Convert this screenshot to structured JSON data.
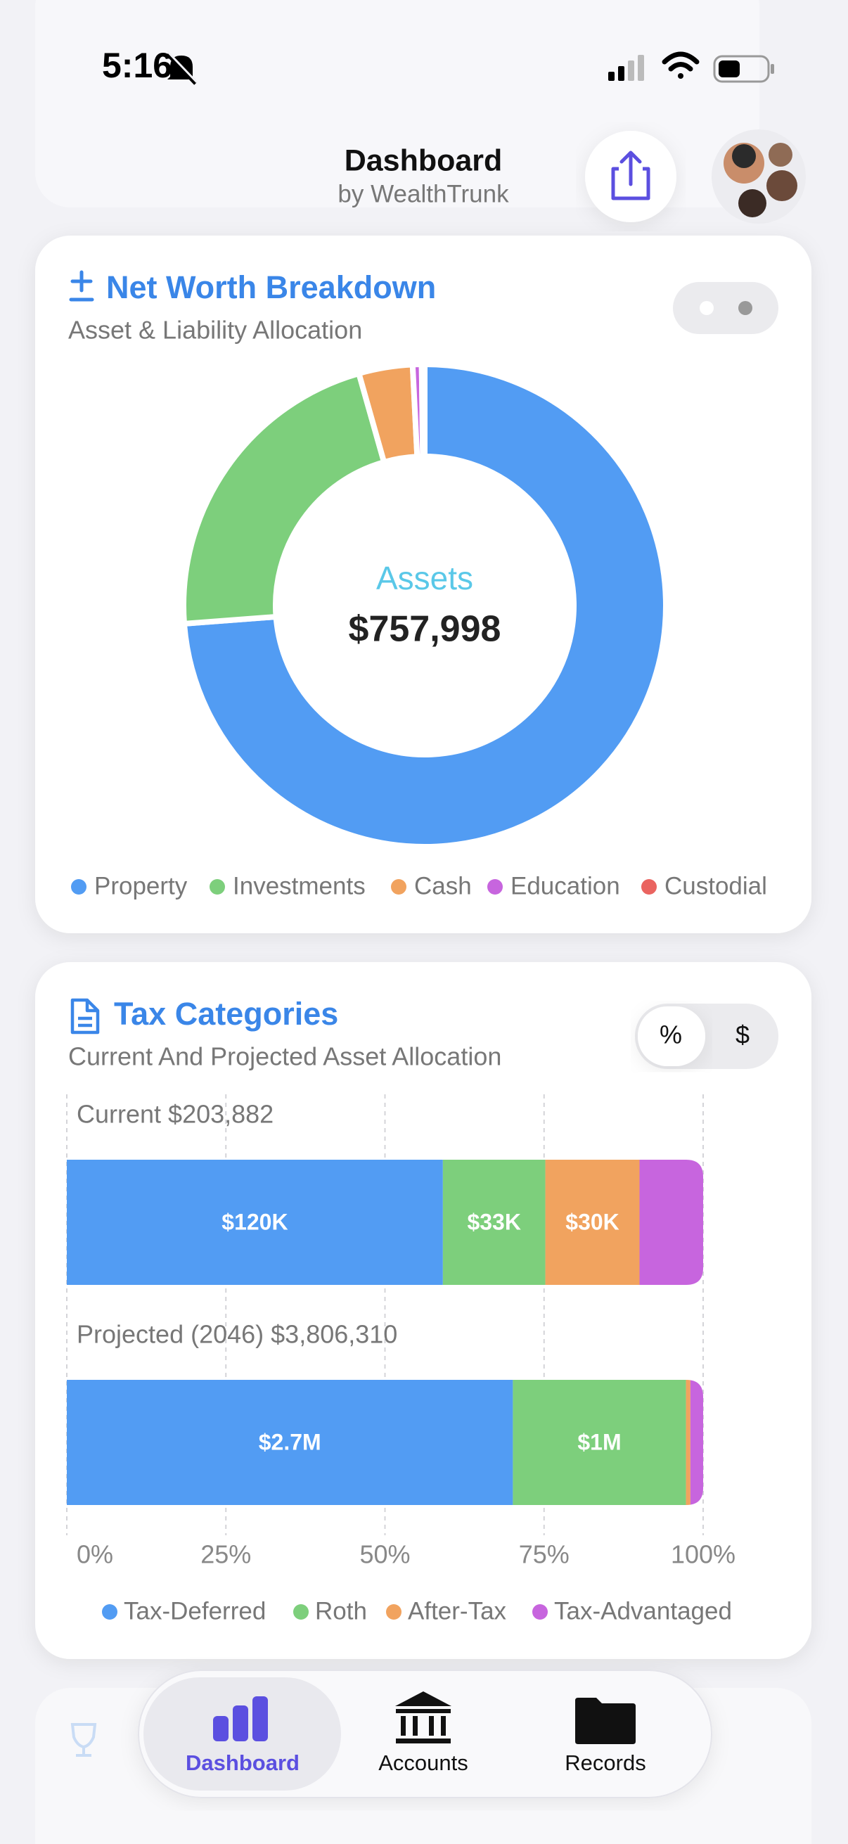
{
  "status_bar": {
    "time": "5:16"
  },
  "header": {
    "title": "Dashboard",
    "subtitle": "by WealthTrunk"
  },
  "net_worth_card": {
    "title": "Net Worth Breakdown",
    "subtitle": "Asset & Liability Allocation",
    "chart_data": {
      "type": "pie",
      "donut": true,
      "center_label": "Assets",
      "center_value": "$757,998",
      "categories": [
        "Property",
        "Investments",
        "Cash",
        "Education",
        "Custodial"
      ],
      "values": [
        73.8,
        21.8,
        3.6,
        0.6,
        0.2
      ],
      "colors": [
        "#529cf3",
        "#7dcf7c",
        "#f1a35f",
        "#c765de",
        "#ea6460"
      ]
    }
  },
  "tax_card": {
    "title": "Tax Categories",
    "subtitle": "Current And Projected Asset Allocation",
    "toggle": [
      "%",
      "$"
    ],
    "chart_data": {
      "type": "bar",
      "orientation": "horizontal",
      "stacked": true,
      "bars": [
        "Current $203,882",
        "Projected (2046) $3,806,310"
      ],
      "series": [
        {
          "name": "Tax-Deferred",
          "color": "#529cf3",
          "values": [
            59.1,
            70.1
          ],
          "segment_labels": [
            "$120K",
            "$2.7M"
          ]
        },
        {
          "name": "Roth",
          "color": "#7dcf7c",
          "values": [
            16.1,
            27.2
          ],
          "segment_labels": [
            "$33K",
            "$1M"
          ]
        },
        {
          "name": "After-Tax",
          "color": "#f1a35f",
          "values": [
            14.8,
            0.7
          ],
          "segment_labels": [
            "$30K",
            null
          ]
        },
        {
          "name": "Tax-Advantaged",
          "color": "#c765de",
          "values": [
            10.0,
            2.0
          ],
          "segment_labels": [
            null,
            null
          ]
        }
      ],
      "xlim": [
        0,
        100
      ],
      "xticks": [
        {
          "value": 0,
          "label": "0%"
        },
        {
          "value": 25,
          "label": "25%"
        },
        {
          "value": 50,
          "label": "50%"
        },
        {
          "value": 75,
          "label": "75%"
        },
        {
          "value": 100,
          "label": "100%"
        }
      ],
      "grid": true
    }
  },
  "tab_bar": {
    "items": [
      "Dashboard",
      "Accounts",
      "Records"
    ],
    "selected": 0
  }
}
